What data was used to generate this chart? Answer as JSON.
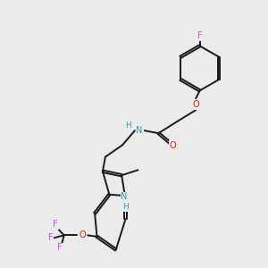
{
  "background_color": "#ebebeb",
  "bond_color": "#1a1a1a",
  "N_color": "#3399aa",
  "O_color": "#cc2200",
  "F_color": "#dd44dd",
  "lw": 1.4,
  "dbo": 0.04,
  "xlim": [
    0,
    10
  ],
  "ylim": [
    0,
    10
  ]
}
